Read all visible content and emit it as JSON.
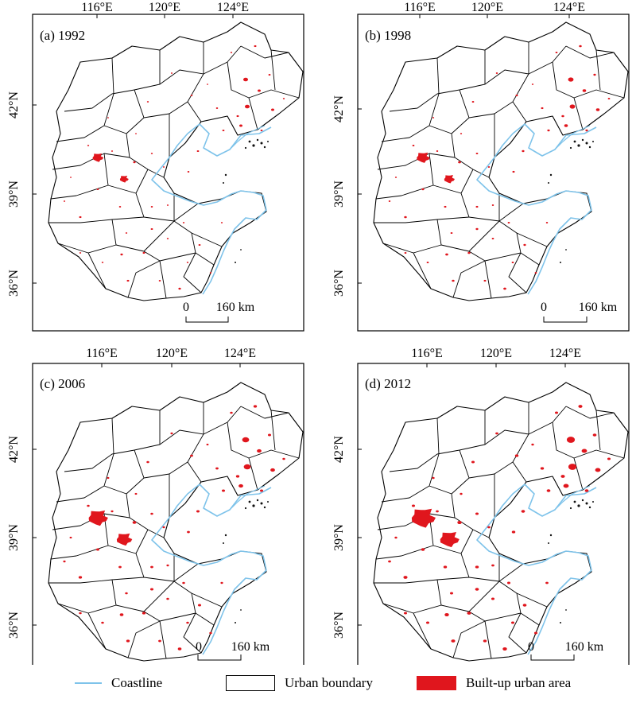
{
  "panels": [
    {
      "id": "a",
      "label": "(a) 1992",
      "density": 1.0,
      "metro_scale": 0.7
    },
    {
      "id": "b",
      "label": "(b) 1998",
      "density": 1.15,
      "metro_scale": 0.85
    },
    {
      "id": "c",
      "label": "(c) 2006",
      "density": 1.45,
      "metro_scale": 1.25
    },
    {
      "id": "d",
      "label": "(d) 2012",
      "density": 1.7,
      "metro_scale": 1.55
    }
  ],
  "axes": {
    "lon_ticks": [
      "116°E",
      "120°E",
      "124°E"
    ],
    "lat_ticks": [
      "42°N",
      "39°N",
      "36°N"
    ]
  },
  "scalebar": {
    "start": "0",
    "end": "160 km"
  },
  "legend": {
    "coastline": "Coastline",
    "urban_boundary": "Urban boundary",
    "built_up": "Built-up urban area"
  },
  "colors": {
    "coastline": "#7ec3ea",
    "built_up": "#e0161d",
    "boundary": "#000000"
  }
}
